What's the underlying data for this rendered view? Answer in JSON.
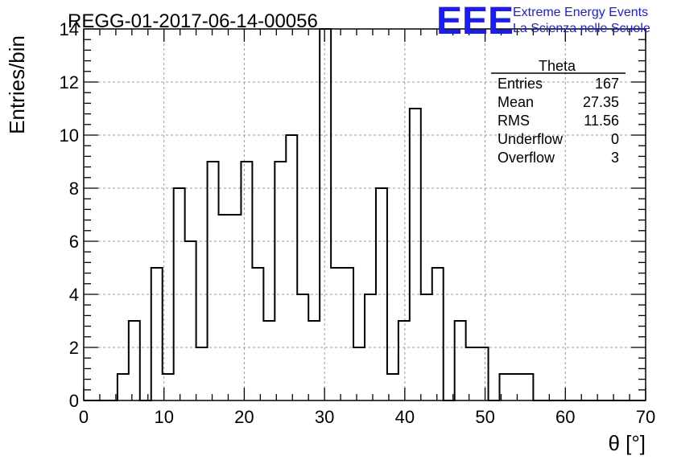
{
  "title": "REGG-01-2017-06-14-00056",
  "logo": {
    "mark": "EEE",
    "line1": "Extreme Energy Events",
    "line2": "La Scienza nelle Scuole",
    "color": "#1a1aff"
  },
  "stats_box": {
    "name": "Theta",
    "rows": [
      {
        "label": "Entries",
        "value": "167"
      },
      {
        "label": "Mean",
        "value": "27.35"
      },
      {
        "label": "RMS",
        "value": "11.56"
      },
      {
        "label": "Underflow",
        "value": "0"
      },
      {
        "label": "Overflow",
        "value": "3"
      }
    ]
  },
  "chart_data": {
    "type": "bar",
    "title": "REGG-01-2017-06-14-00056",
    "xlabel": "θ [°]",
    "ylabel": "Entries/bin",
    "xlim": [
      0,
      70
    ],
    "ylim": [
      0,
      14
    ],
    "grid": true,
    "bin_start": 0,
    "bin_width": 1.4,
    "values": [
      0,
      0,
      0,
      1,
      3,
      0,
      5,
      1,
      8,
      6,
      2,
      9,
      7,
      7,
      9,
      5,
      3,
      9,
      10,
      4,
      3,
      14,
      5,
      5,
      2,
      4,
      8,
      1,
      3,
      11,
      4,
      5,
      0,
      3,
      2,
      2,
      0,
      1,
      1,
      1,
      0,
      0,
      0,
      0,
      0,
      0,
      0,
      0,
      0,
      0
    ],
    "x_ticks": [
      0,
      10,
      20,
      30,
      40,
      50,
      60,
      70
    ],
    "y_ticks": [
      0,
      2,
      4,
      6,
      8,
      10,
      12,
      14
    ]
  }
}
